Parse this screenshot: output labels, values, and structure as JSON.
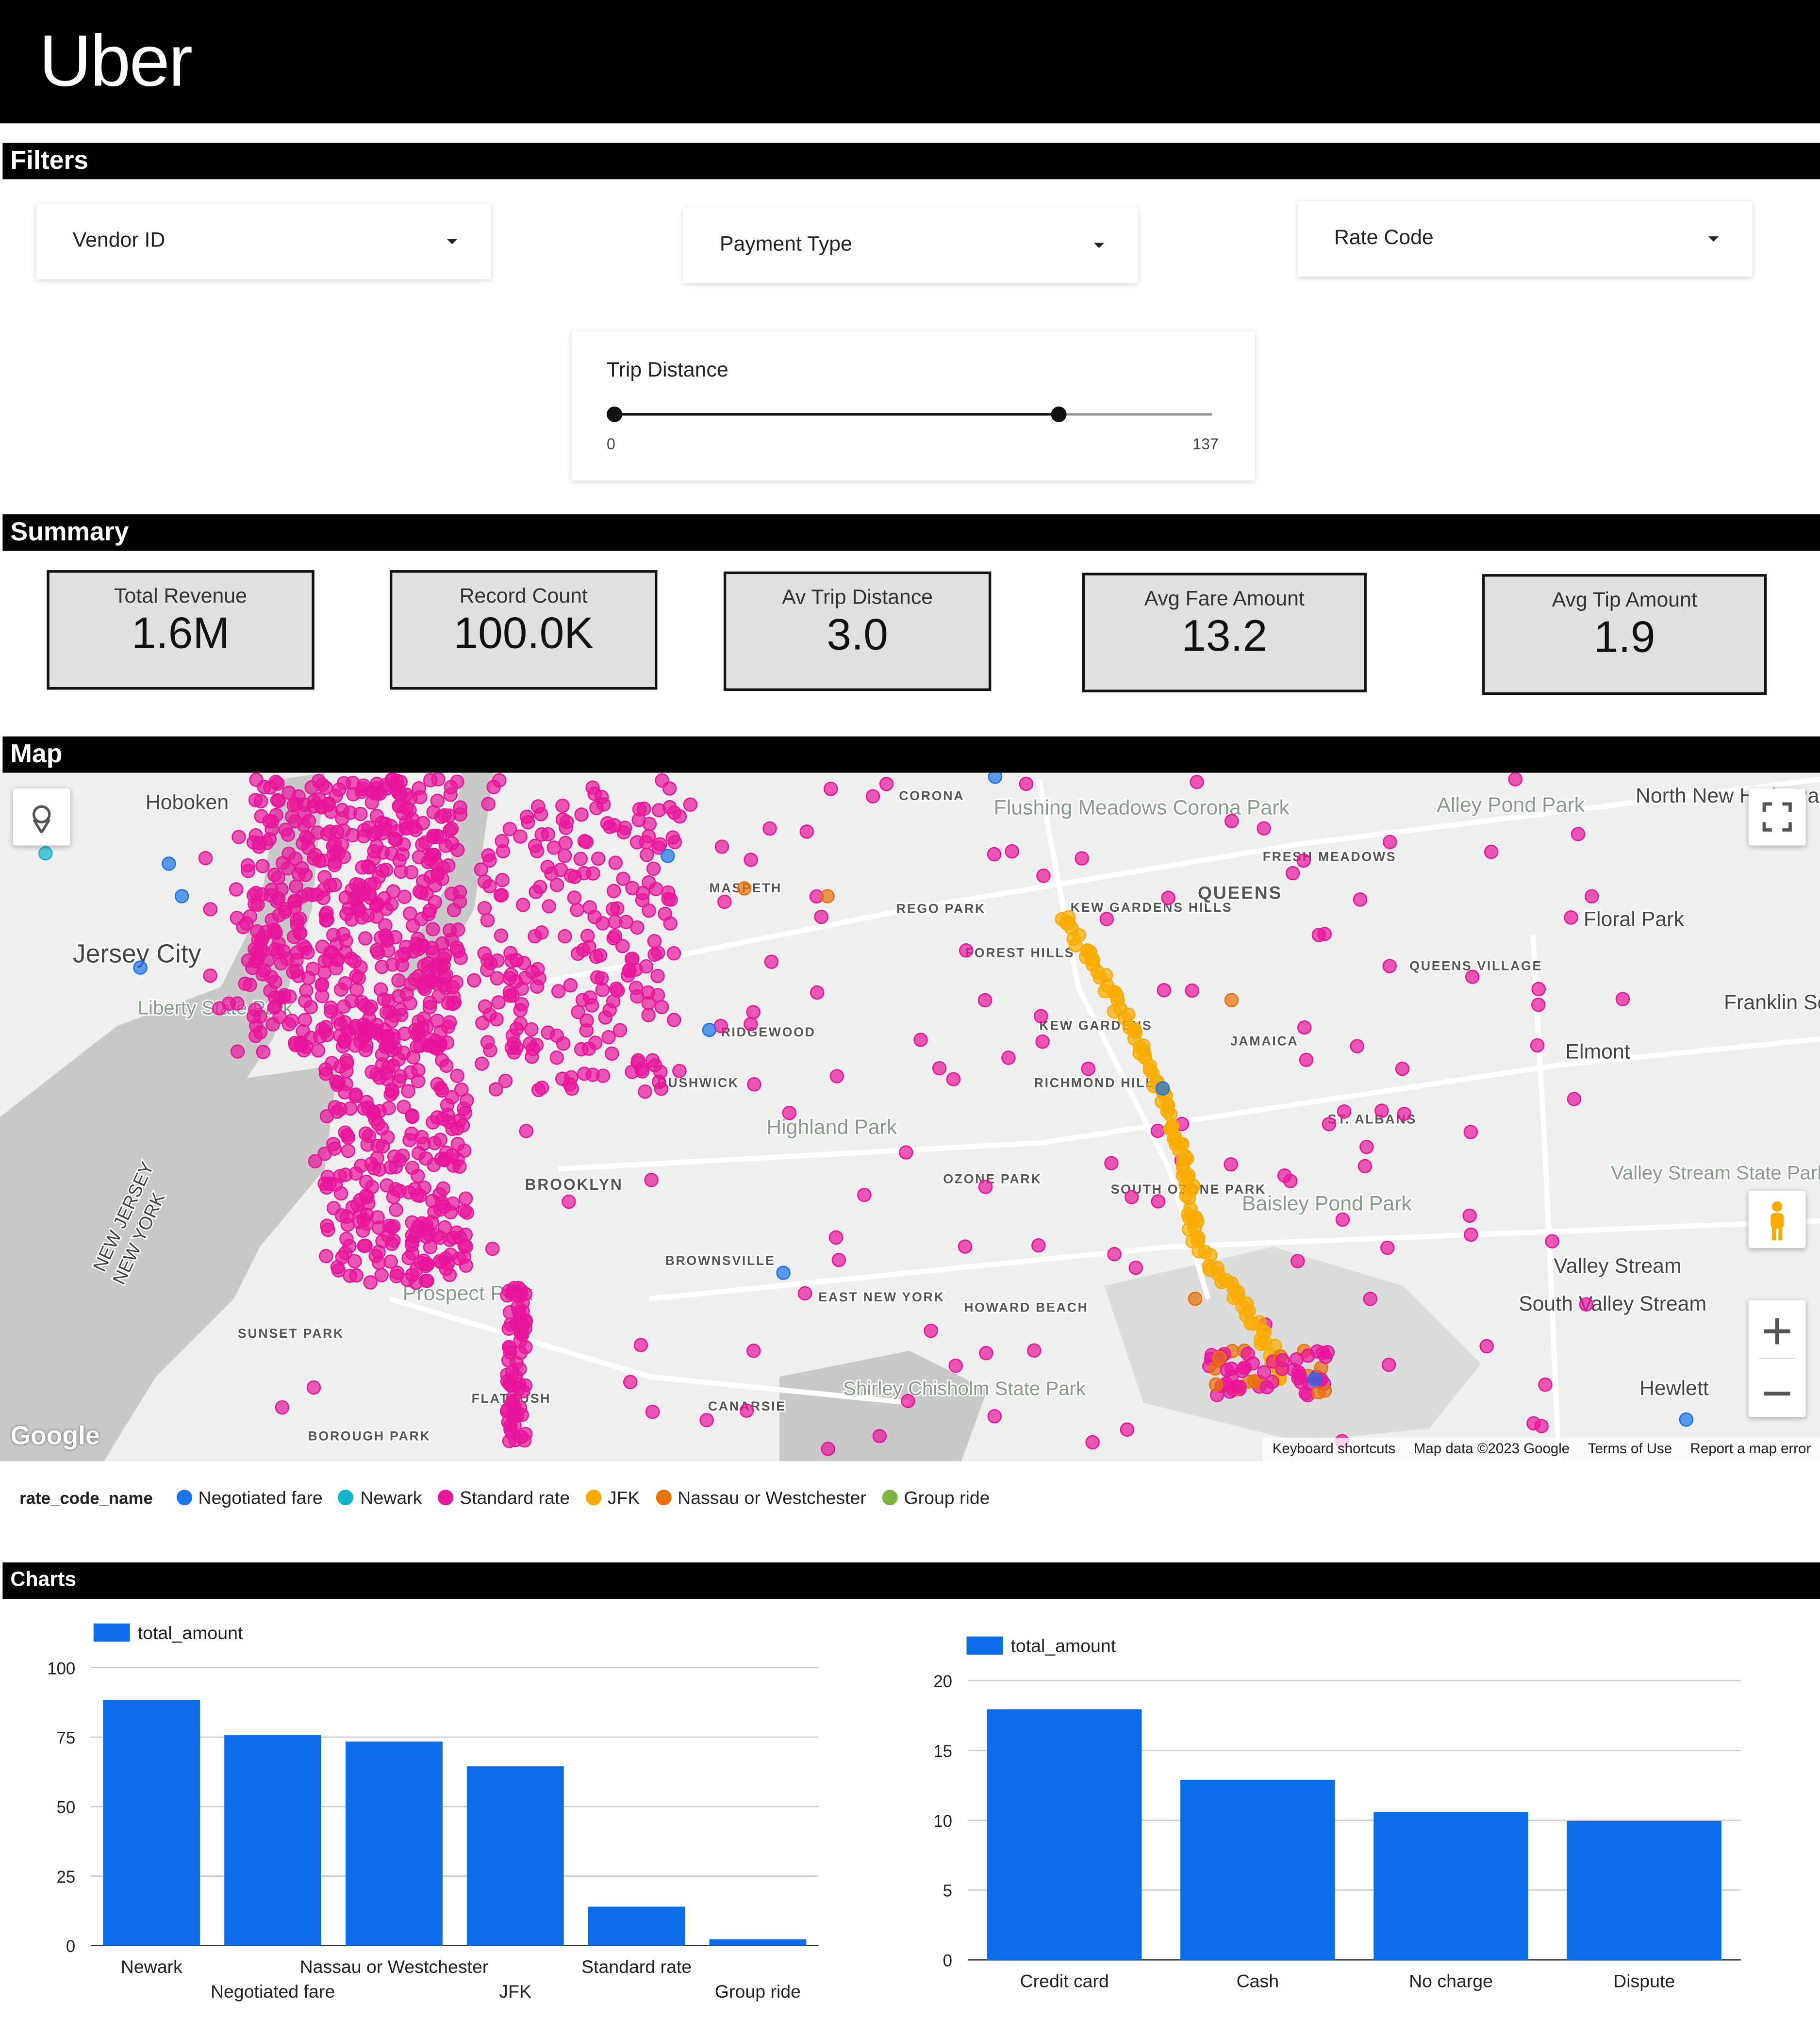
{
  "header": {
    "logo": "Uber"
  },
  "filters": {
    "title": "Filters",
    "dropdowns": [
      "Vendor ID",
      "Payment Type",
      "Rate Code"
    ],
    "slider": {
      "label": "Trip Distance",
      "min": 0,
      "max": 137
    }
  },
  "summary": {
    "title": "Summary",
    "cards": [
      {
        "label": "Total Revenue",
        "value": "1.6M"
      },
      {
        "label": "Record Count",
        "value": "100.0K"
      },
      {
        "label": "Av Trip Distance",
        "value": "3.0"
      },
      {
        "label": "Avg Fare Amount",
        "value": "13.2"
      },
      {
        "label": "Avg Tip Amount",
        "value": "1.9"
      }
    ]
  },
  "map": {
    "title": "Map",
    "logo": "Google",
    "places": [
      "Hoboken",
      "Jersey City",
      "Liberty State Park",
      "CORONA",
      "Flushing Meadows Corona Park",
      "MASPETH",
      "REGO PARK",
      "FOREST HILLS",
      "KEW GARDENS HILLS",
      "QUEENS",
      "FRESH MEADOWS",
      "Alley Pond Park",
      "North New Hyde Park",
      "Floral Park",
      "QUEENS VILLAGE",
      "Franklin Square",
      "Elmont",
      "JAMAICA",
      "KEW GARDENS",
      "RICHMOND HILL",
      "RIDGEWOOD",
      "BUSHWICK",
      "Highland Park",
      "ST. ALBANS",
      "OZONE PARK",
      "SOUTH OZONE PARK",
      "Baisley Pond Park",
      "Valley Stream State Park",
      "Valley Stream",
      "South Valley Stream",
      "BROWNSVILLE",
      "EAST NEW YORK",
      "HOWARD BEACH",
      "Prospect Park",
      "SUNSET PARK",
      "FLATBUSH",
      "CANARSIE",
      "Shirley Chisholm State Park",
      "BOROUGH PARK",
      "Hewlett",
      "NEW JERSEY",
      "NEW YORK",
      "BROOKLYN"
    ],
    "attribution": [
      "Keyboard shortcuts",
      "Map data ©2023 Google",
      "Terms of Use",
      "Report a map error"
    ],
    "legend": {
      "title": "rate_code_name",
      "items": [
        {
          "name": "Negotiated fare",
          "color": "#1a73e8"
        },
        {
          "name": "Newark",
          "color": "#12b5cb"
        },
        {
          "name": "Standard rate",
          "color": "#e8169b"
        },
        {
          "name": "JFK",
          "color": "#f9ab00"
        },
        {
          "name": "Nassau or Westchester",
          "color": "#e8710a"
        },
        {
          "name": "Group ride",
          "color": "#7cb342"
        }
      ]
    }
  },
  "charts_section": {
    "title": "Charts"
  },
  "chart_data": [
    {
      "type": "bar",
      "categories": [
        "Newark",
        "Negotiated fare",
        "Nassau or Westchester",
        "JFK",
        "Standard rate",
        "Group ride"
      ],
      "series": [
        {
          "name": "total_amount",
          "color": "#0b6ee8",
          "values": [
            88.3,
            75.7,
            73.4,
            64.5,
            14,
            2.3
          ]
        }
      ],
      "ylim": [
        0,
        100
      ],
      "yticks": [
        0,
        25,
        50,
        75,
        100
      ],
      "grid": true,
      "legend": "top-left"
    },
    {
      "type": "bar",
      "categories": [
        "Credit card",
        "Cash",
        "No charge",
        "Dispute"
      ],
      "series": [
        {
          "name": "total_amount",
          "color": "#0b6ee8",
          "values": [
            17.95,
            12.9,
            10.6,
            9.95
          ]
        }
      ],
      "ylim": [
        0,
        20
      ],
      "yticks": [
        0,
        5,
        10,
        15,
        20
      ],
      "grid": true,
      "legend": "top-left"
    }
  ]
}
